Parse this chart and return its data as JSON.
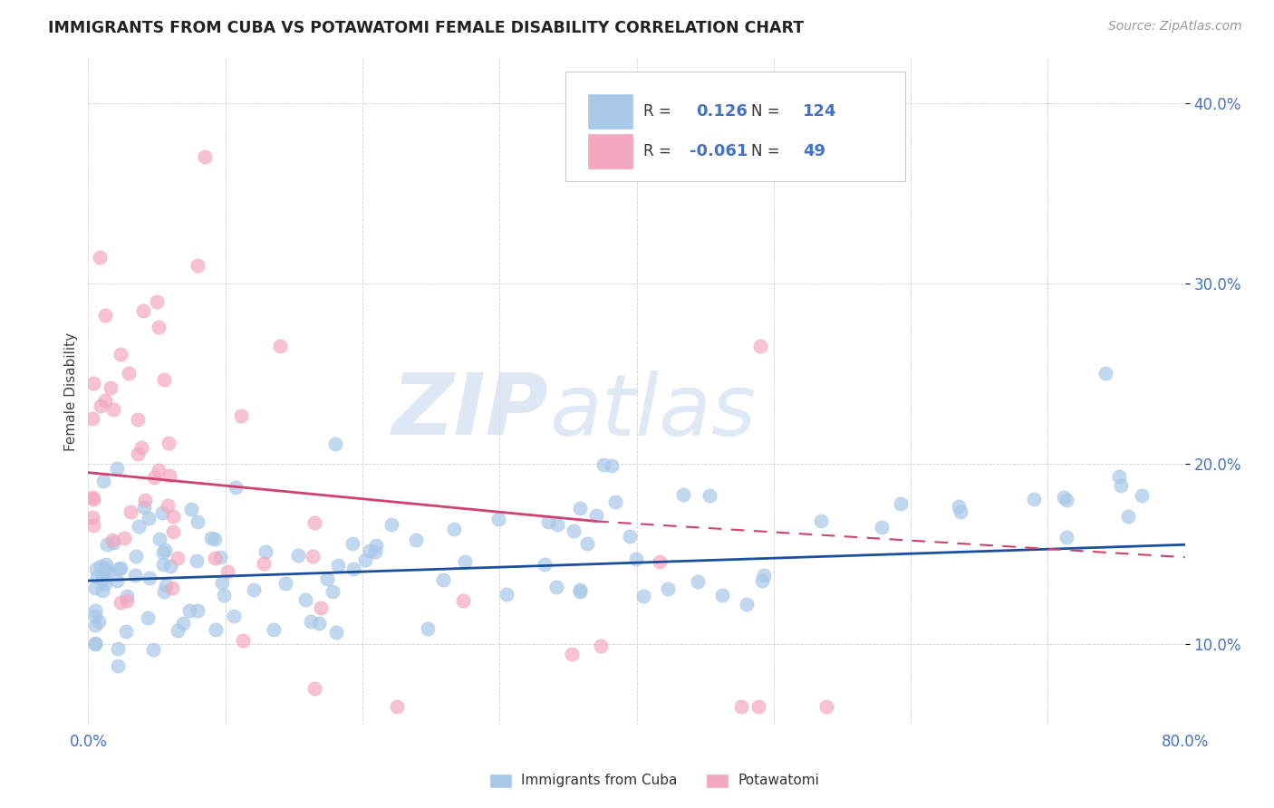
{
  "title": "IMMIGRANTS FROM CUBA VS POTAWATOMI FEMALE DISABILITY CORRELATION CHART",
  "source_text": "Source: ZipAtlas.com",
  "ylabel": "Female Disability",
  "ytick_values": [
    0.1,
    0.2,
    0.3,
    0.4
  ],
  "xmin": 0.0,
  "xmax": 0.8,
  "ymin": 0.055,
  "ymax": 0.425,
  "legend_r_cuba": "0.126",
  "legend_n_cuba": "124",
  "legend_r_potawatomi": "-0.061",
  "legend_n_potawatomi": "49",
  "color_cuba": "#a8c8e8",
  "color_potawatomi": "#f4a8be",
  "trendline_cuba_color": "#1a4fa0",
  "trendline_potawatomi_color": "#d04070",
  "watermark_zip": "ZIP",
  "watermark_atlas": "atlas",
  "seed_cuba": 42,
  "seed_pota": 99
}
